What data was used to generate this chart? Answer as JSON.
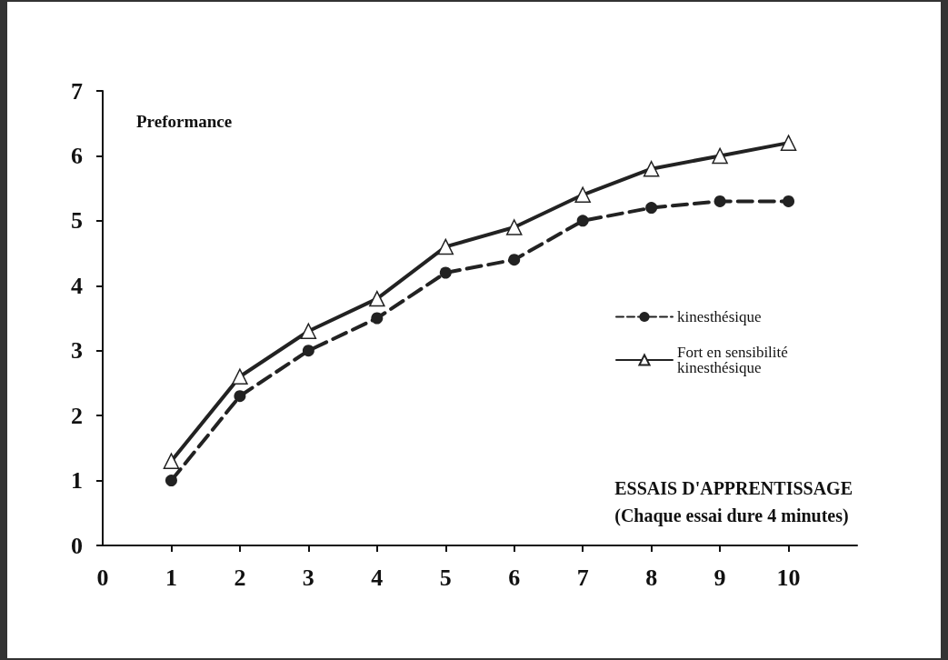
{
  "chart_data": {
    "type": "line",
    "ylabel": "Preformance",
    "xlabel": "ESSAIS D'APPRENTISSAGE\n(Chaque essai dure 4 minutes)",
    "x": [
      1,
      2,
      3,
      4,
      5,
      6,
      7,
      8,
      9,
      10
    ],
    "xlim": [
      0,
      11
    ],
    "xticks": [
      0,
      1,
      2,
      3,
      4,
      5,
      6,
      7,
      8,
      9,
      10
    ],
    "ylim": [
      0,
      7
    ],
    "yticks": [
      0,
      1,
      2,
      3,
      4,
      5,
      6,
      7
    ],
    "grid": false,
    "legend": "right",
    "series": [
      {
        "name": "kinesthésique",
        "color": "#222222",
        "marker": "circle",
        "line_style": "dashed",
        "values": [
          1,
          2.3,
          3,
          3.5,
          4.2,
          4.4,
          5,
          5.2,
          5.3,
          5.3
        ]
      },
      {
        "name": "Fort en sensibilité kinesthésique",
        "color": "#222222",
        "marker": "triangle",
        "line_style": "solid",
        "values": [
          1.3,
          2.6,
          3.3,
          3.8,
          4.6,
          4.9,
          5.4,
          5.8,
          6,
          6.2
        ]
      }
    ]
  }
}
